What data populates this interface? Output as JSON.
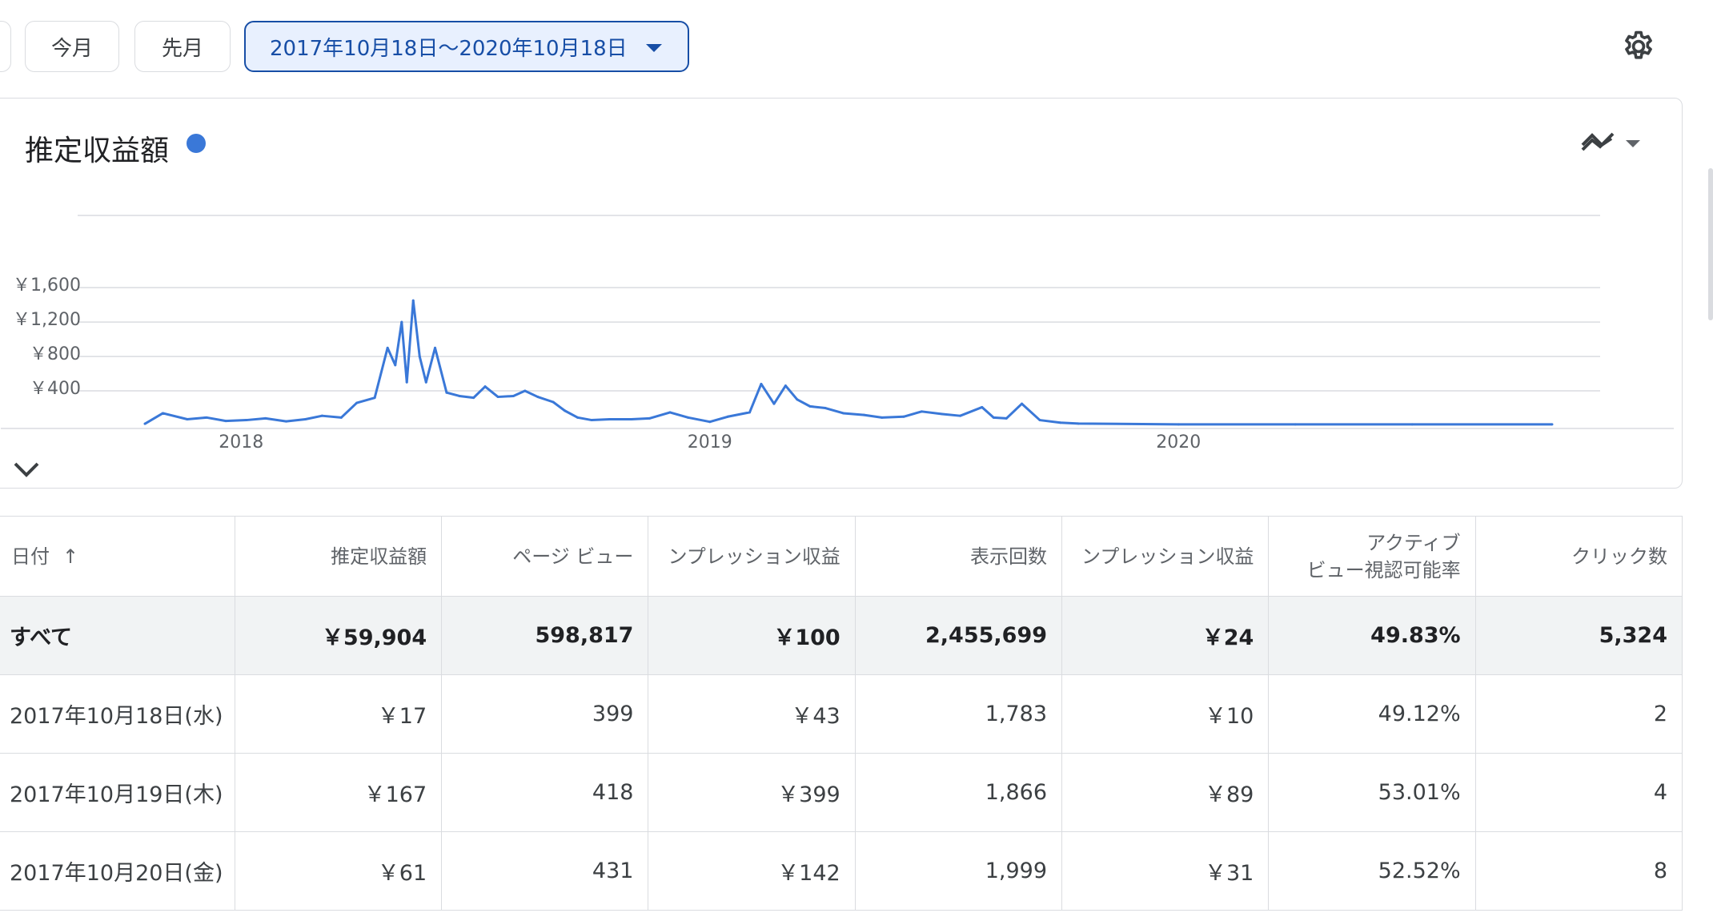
{
  "toolbar": {
    "this_month": "今月",
    "last_month": "先月",
    "date_range": "2017年10月18日〜2020年10月18日"
  },
  "chart": {
    "title": "推定収益額",
    "series_color": "#3a78d8"
  },
  "chart_data": {
    "type": "line",
    "title": "推定収益額",
    "ylabel": "推定収益額",
    "y_ticks": [
      "￥400",
      "￥800",
      "￥1,200",
      "￥1,600"
    ],
    "y_tick_values": [
      400,
      800,
      1200,
      1600
    ],
    "x_ticks": [
      "2018",
      "2019",
      "2020"
    ],
    "x_tick_dates": [
      "2018-01-01",
      "2019-01-01",
      "2020-01-01"
    ],
    "x_range": [
      "2017-10-18",
      "2020-10-18"
    ],
    "ylim": [
      0,
      1600
    ],
    "grid": true,
    "series": [
      {
        "name": "推定収益額",
        "x": [
          "2017-10-18",
          "2017-11-01",
          "2017-11-20",
          "2017-12-05",
          "2017-12-20",
          "2018-01-05",
          "2018-01-20",
          "2018-02-05",
          "2018-02-20",
          "2018-03-05",
          "2018-03-20",
          "2018-04-01",
          "2018-04-15",
          "2018-04-25",
          "2018-05-01",
          "2018-05-06",
          "2018-05-10",
          "2018-05-15",
          "2018-05-20",
          "2018-05-25",
          "2018-06-01",
          "2018-06-10",
          "2018-06-20",
          "2018-07-01",
          "2018-07-10",
          "2018-07-20",
          "2018-08-01",
          "2018-08-10",
          "2018-08-20",
          "2018-09-01",
          "2018-09-10",
          "2018-09-20",
          "2018-10-01",
          "2018-10-15",
          "2018-11-01",
          "2018-11-15",
          "2018-12-01",
          "2018-12-15",
          "2019-01-01",
          "2019-01-15",
          "2019-02-01",
          "2019-02-10",
          "2019-02-20",
          "2019-03-01",
          "2019-03-10",
          "2019-03-20",
          "2019-04-01",
          "2019-04-15",
          "2019-05-01",
          "2019-05-15",
          "2019-06-01",
          "2019-06-15",
          "2019-07-01",
          "2019-07-15",
          "2019-08-01",
          "2019-08-10",
          "2019-08-20",
          "2019-09-01",
          "2019-09-15",
          "2019-10-01",
          "2019-10-15",
          "2020-01-01",
          "2020-04-01",
          "2020-07-01",
          "2020-10-18"
        ],
        "values": [
          17,
          140,
          70,
          90,
          50,
          60,
          80,
          45,
          70,
          110,
          90,
          260,
          320,
          900,
          700,
          1200,
          500,
          1450,
          800,
          500,
          900,
          380,
          340,
          320,
          450,
          330,
          340,
          400,
          330,
          270,
          170,
          90,
          60,
          70,
          70,
          80,
          150,
          90,
          40,
          100,
          150,
          480,
          250,
          460,
          300,
          220,
          200,
          140,
          120,
          90,
          100,
          160,
          130,
          110,
          210,
          90,
          80,
          250,
          60,
          30,
          20,
          10,
          10,
          10,
          10
        ]
      }
    ]
  },
  "table": {
    "headers": [
      "日付",
      "推定収益額",
      "ページ ビュー",
      "ンプレッション収益",
      "表示回数",
      "ンプレッション収益",
      "アクティブ",
      "クリック数"
    ],
    "header_active_view_line2": "ビュー視認可能率",
    "sort_arrow": "↑",
    "total": [
      "すべて",
      "￥59,904",
      "598,817",
      "￥100",
      "2,455,699",
      "￥24",
      "49.83%",
      "5,324"
    ],
    "rows": [
      [
        "2017年10月18日(水)",
        "￥17",
        "399",
        "￥43",
        "1,783",
        "￥10",
        "49.12%",
        "2"
      ],
      [
        "2017年10月19日(木)",
        "￥167",
        "418",
        "￥399",
        "1,866",
        "￥89",
        "53.01%",
        "4"
      ],
      [
        "2017年10月20日(金)",
        "￥61",
        "431",
        "￥142",
        "1,999",
        "￥31",
        "52.52%",
        "8"
      ]
    ]
  }
}
